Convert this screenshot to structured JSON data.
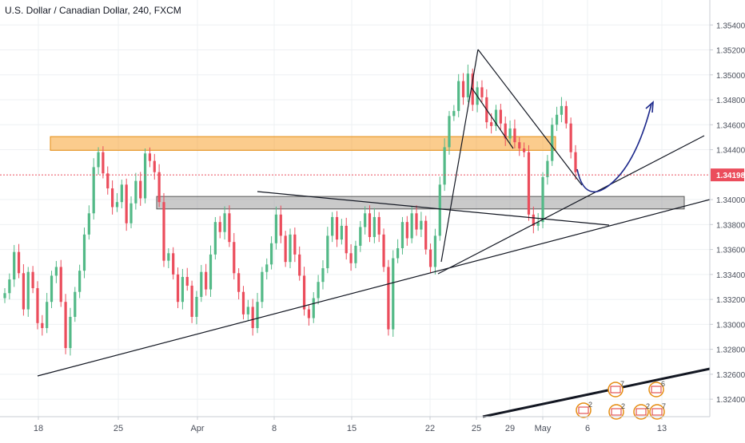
{
  "chart_data": {
    "type": "candlestick",
    "title": "U.S. Dollar / Canadian Dollar, 240, FXCM",
    "symbol": "U.S. Dollar / Canadian Dollar",
    "interval": "240",
    "source": "FXCM",
    "colors": {
      "up": "#53b987",
      "down": "#eb4d5c",
      "price_line": "#eb4d5c",
      "price_badge": "#eb4d5c",
      "resistance_zone": "#f7a330",
      "support_zone": "#9e9e9e",
      "trendline": "#131722",
      "projection": "#1e2a8c",
      "grid": "#eef0f3",
      "axis_text": "#4a4f5b"
    },
    "y_axis": {
      "min": 1.3226,
      "max": 1.356,
      "ticks": [
        "1.35400",
        "1.35200",
        "1.35000",
        "1.34800",
        "1.34600",
        "1.34400",
        "1.34000",
        "1.33800",
        "1.33600",
        "1.33400",
        "1.33200",
        "1.33000",
        "1.32800",
        "1.32600",
        "1.32400"
      ],
      "current_price": "1.34198"
    },
    "x_axis": {
      "labels": [
        "18",
        "25",
        "Apr",
        "8",
        "15",
        "22",
        "25",
        "29",
        "May",
        "6",
        "13"
      ]
    },
    "series_close": [
      1.3325,
      1.3336,
      1.3358,
      1.3341,
      1.3312,
      1.3342,
      1.3329,
      1.3301,
      1.3297,
      1.3318,
      1.3339,
      1.3346,
      1.3318,
      1.3281,
      1.3306,
      1.3326,
      1.3343,
      1.3372,
      1.3389,
      1.3426,
      1.3438,
      1.3421,
      1.3409,
      1.3394,
      1.3398,
      1.3412,
      1.3381,
      1.3397,
      1.3415,
      1.3401,
      1.3437,
      1.3431,
      1.3422,
      1.3398,
      1.3351,
      1.3357,
      1.334,
      1.3318,
      1.3338,
      1.3331,
      1.3306,
      1.3322,
      1.3342,
      1.3328,
      1.3356,
      1.3382,
      1.3374,
      1.3389,
      1.3366,
      1.3341,
      1.3326,
      1.3308,
      1.3314,
      1.3297,
      1.3318,
      1.3342,
      1.3348,
      1.3365,
      1.3388,
      1.3371,
      1.335,
      1.3372,
      1.3356,
      1.3339,
      1.3312,
      1.3305,
      1.3321,
      1.3334,
      1.3345,
      1.3371,
      1.3386,
      1.3368,
      1.3379,
      1.3357,
      1.3349,
      1.3363,
      1.3378,
      1.3389,
      1.337,
      1.3386,
      1.3372,
      1.3346,
      1.3296,
      1.3353,
      1.3361,
      1.3382,
      1.3369,
      1.3389,
      1.3376,
      1.3383,
      1.336,
      1.3346,
      1.3371,
      1.3412,
      1.3442,
      1.3467,
      1.3471,
      1.3495,
      1.3482,
      1.3501,
      1.3476,
      1.349,
      1.3482,
      1.3462,
      1.3459,
      1.3472,
      1.3461,
      1.3449,
      1.3457,
      1.3446,
      1.3441,
      1.3438,
      1.3388,
      1.3379,
      1.3382,
      1.3418,
      1.3431,
      1.346,
      1.3468,
      1.3475,
      1.3461,
      1.3438,
      1.3422
    ]
  },
  "watermark_events": [
    {
      "label": "2"
    },
    {
      "label": "7"
    },
    {
      "label": "2"
    },
    {
      "label": "2"
    },
    {
      "label": "6"
    },
    {
      "label": "7"
    }
  ]
}
